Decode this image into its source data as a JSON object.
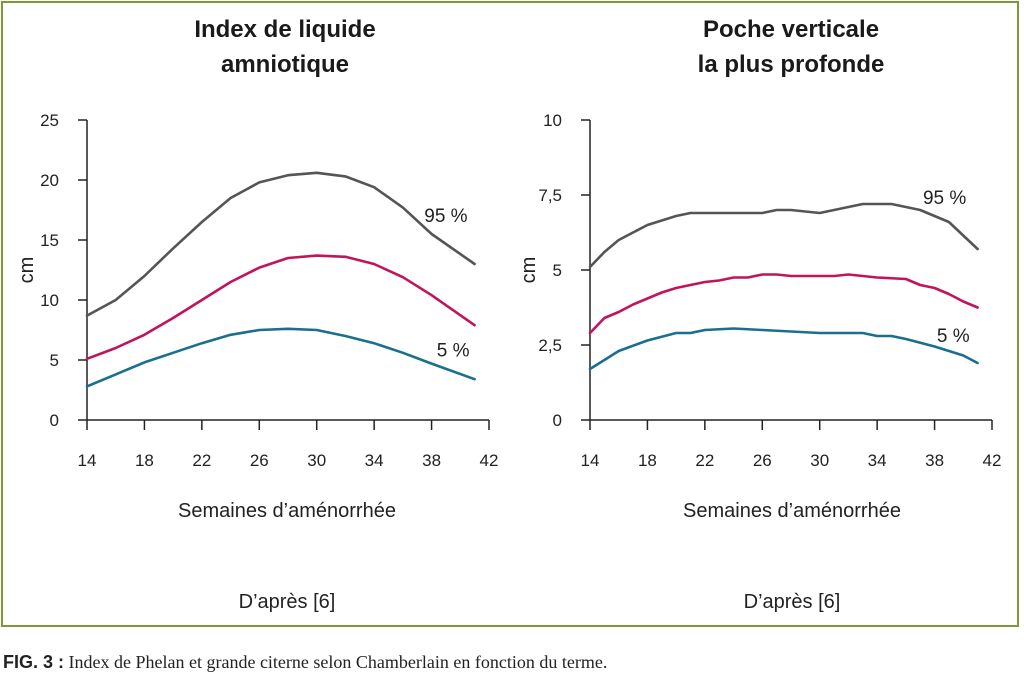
{
  "caption": {
    "label": "FIG. 3 :",
    "text": " Index de Phelan et grande citerne selon Chamberlain en fonction du terme."
  },
  "colors": {
    "frame": "#7a9a3a",
    "p95": "#555555",
    "p50": "#c0155a",
    "p5": "#1a6f8f"
  },
  "chart_data": [
    {
      "type": "line",
      "title": [
        "Index de liquide",
        "amniotique"
      ],
      "xlabel": "Semaines d’aménorrhée",
      "ylabel": "cm",
      "source": "D’après [6]",
      "xlim": [
        14,
        42
      ],
      "ylim": [
        0,
        25
      ],
      "xticks": [
        14,
        18,
        22,
        26,
        30,
        34,
        38,
        42
      ],
      "yticks": [
        {
          "v": 0,
          "label": "0"
        },
        {
          "v": 5,
          "label": "5"
        },
        {
          "v": 10,
          "label": "10"
        },
        {
          "v": 15,
          "label": "15"
        },
        {
          "v": 20,
          "label": "20"
        },
        {
          "v": 25,
          "label": "25"
        }
      ],
      "annotations": [
        {
          "text": "95 %",
          "x": 39,
          "y": 16.5
        },
        {
          "text": "5 %",
          "x": 39.5,
          "y": 5.3
        }
      ],
      "series": [
        {
          "color_key": "p95",
          "points": [
            [
              14,
              8.7
            ],
            [
              16,
              10
            ],
            [
              18,
              12
            ],
            [
              20,
              14.3
            ],
            [
              22,
              16.5
            ],
            [
              24,
              18.5
            ],
            [
              26,
              19.8
            ],
            [
              28,
              20.4
            ],
            [
              30,
              20.6
            ],
            [
              32,
              20.3
            ],
            [
              34,
              19.4
            ],
            [
              36,
              17.7
            ],
            [
              38,
              15.5
            ],
            [
              41,
              13
            ]
          ]
        },
        {
          "color_key": "p50",
          "points": [
            [
              14,
              5.1
            ],
            [
              16,
              6
            ],
            [
              18,
              7.1
            ],
            [
              20,
              8.5
            ],
            [
              22,
              10
            ],
            [
              24,
              11.5
            ],
            [
              26,
              12.7
            ],
            [
              28,
              13.5
            ],
            [
              30,
              13.7
            ],
            [
              32,
              13.6
            ],
            [
              34,
              13
            ],
            [
              36,
              11.9
            ],
            [
              38,
              10.4
            ],
            [
              41,
              7.9
            ]
          ]
        },
        {
          "color_key": "p5",
          "points": [
            [
              14,
              2.8
            ],
            [
              16,
              3.8
            ],
            [
              18,
              4.8
            ],
            [
              20,
              5.6
            ],
            [
              22,
              6.4
            ],
            [
              24,
              7.1
            ],
            [
              26,
              7.5
            ],
            [
              28,
              7.6
            ],
            [
              30,
              7.5
            ],
            [
              32,
              7
            ],
            [
              34,
              6.4
            ],
            [
              36,
              5.6
            ],
            [
              38,
              4.7
            ],
            [
              41,
              3.4
            ]
          ]
        }
      ]
    },
    {
      "type": "line",
      "title": [
        "Poche verticale",
        "la plus profonde"
      ],
      "xlabel": "Semaines d’aménorrhée",
      "ylabel": "cm",
      "source": "D’après [6]",
      "xlim": [
        14,
        42
      ],
      "ylim": [
        0,
        10
      ],
      "xticks": [
        14,
        18,
        22,
        26,
        30,
        34,
        38,
        42
      ],
      "yticks": [
        {
          "v": 0,
          "label": "0"
        },
        {
          "v": 2.5,
          "label": "2,5"
        },
        {
          "v": 5,
          "label": "5"
        },
        {
          "v": 7.5,
          "label": "7,5"
        },
        {
          "v": 10,
          "label": "10"
        }
      ],
      "annotations": [
        {
          "text": "95 %",
          "x": 38.7,
          "y": 7.2
        },
        {
          "text": "5 %",
          "x": 39.3,
          "y": 2.6
        }
      ],
      "series": [
        {
          "color_key": "p95",
          "points": [
            [
              14,
              5.1
            ],
            [
              15,
              5.6
            ],
            [
              16,
              6
            ],
            [
              18,
              6.5
            ],
            [
              20,
              6.8
            ],
            [
              21,
              6.9
            ],
            [
              22,
              6.9
            ],
            [
              24,
              6.9
            ],
            [
              26,
              6.9
            ],
            [
              27,
              7
            ],
            [
              28,
              7
            ],
            [
              30,
              6.9
            ],
            [
              32,
              7.1
            ],
            [
              33,
              7.2
            ],
            [
              35,
              7.2
            ],
            [
              37,
              7
            ],
            [
              39,
              6.6
            ],
            [
              41,
              5.7
            ]
          ]
        },
        {
          "color_key": "p50",
          "points": [
            [
              14,
              2.9
            ],
            [
              15,
              3.4
            ],
            [
              16,
              3.6
            ],
            [
              17,
              3.85
            ],
            [
              18,
              4.05
            ],
            [
              19,
              4.25
            ],
            [
              20,
              4.4
            ],
            [
              21,
              4.5
            ],
            [
              22,
              4.6
            ],
            [
              23,
              4.65
            ],
            [
              24,
              4.75
            ],
            [
              25,
              4.75
            ],
            [
              26,
              4.85
            ],
            [
              27,
              4.85
            ],
            [
              28,
              4.8
            ],
            [
              30,
              4.8
            ],
            [
              31,
              4.8
            ],
            [
              32,
              4.85
            ],
            [
              33,
              4.8
            ],
            [
              34,
              4.75
            ],
            [
              36,
              4.7
            ],
            [
              37,
              4.5
            ],
            [
              38,
              4.4
            ],
            [
              39,
              4.2
            ],
            [
              40,
              3.95
            ],
            [
              41,
              3.75
            ]
          ]
        },
        {
          "color_key": "p5",
          "points": [
            [
              14,
              1.7
            ],
            [
              15,
              2
            ],
            [
              16,
              2.3
            ],
            [
              18,
              2.65
            ],
            [
              20,
              2.9
            ],
            [
              21,
              2.9
            ],
            [
              22,
              3
            ],
            [
              24,
              3.05
            ],
            [
              26,
              3.0
            ],
            [
              28,
              2.95
            ],
            [
              30,
              2.9
            ],
            [
              32,
              2.9
            ],
            [
              33,
              2.9
            ],
            [
              34,
              2.8
            ],
            [
              35,
              2.8
            ],
            [
              36,
              2.7
            ],
            [
              38,
              2.45
            ],
            [
              40,
              2.15
            ],
            [
              41,
              1.9
            ]
          ]
        }
      ]
    }
  ]
}
